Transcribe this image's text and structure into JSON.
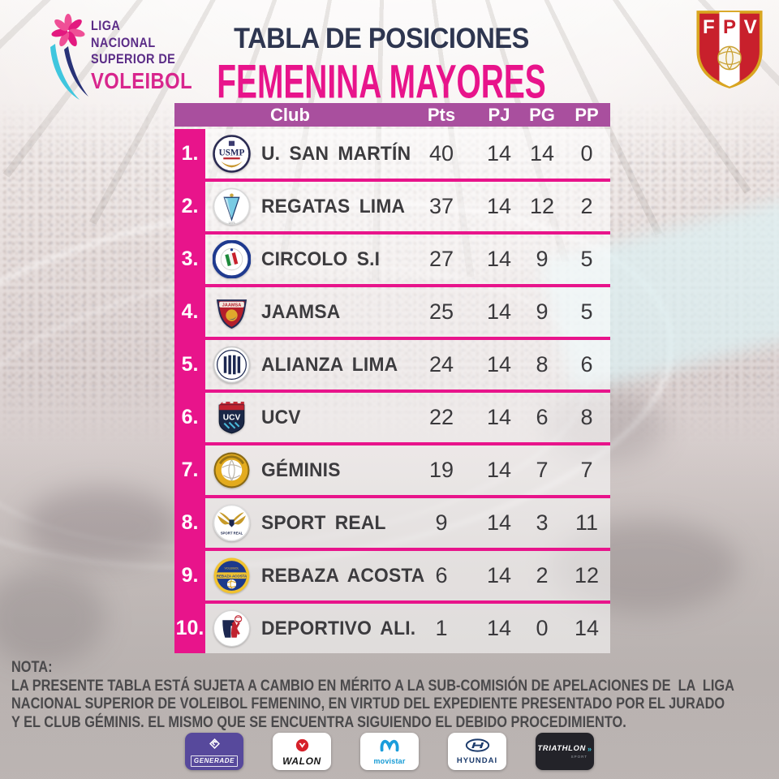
{
  "league_logo": {
    "lines": [
      "LIGA",
      "NACIONAL",
      "SUPERIOR DE",
      "VOLEIBOL"
    ]
  },
  "federation_logo": {
    "letters": [
      "F",
      "P",
      "V"
    ]
  },
  "title": "TABLA DE POSICIONES",
  "subtitle": "FEMENINA MAYORES",
  "table": {
    "columns": [
      "Club",
      "Pts",
      "PJ",
      "PG",
      "PP"
    ],
    "rows": [
      {
        "rank": "1.",
        "club": "U. SAN MARTÍN",
        "pts": "40",
        "pj": "14",
        "pg": "14",
        "pp": "0",
        "logo": "usmp"
      },
      {
        "rank": "2.",
        "club": "REGATAS LIMA",
        "pts": "37",
        "pj": "14",
        "pg": "12",
        "pp": "2",
        "logo": "regatas"
      },
      {
        "rank": "3.",
        "club": "CIRCOLO S.I",
        "pts": "27",
        "pj": "14",
        "pg": "9",
        "pp": "5",
        "logo": "circolo"
      },
      {
        "rank": "4.",
        "club": "JAAMSA",
        "pts": "25",
        "pj": "14",
        "pg": "9",
        "pp": "5",
        "logo": "jaamsa"
      },
      {
        "rank": "5.",
        "club": "ALIANZA LIMA",
        "pts": "24",
        "pj": "14",
        "pg": "8",
        "pp": "6",
        "logo": "alianza"
      },
      {
        "rank": "6.",
        "club": "UCV",
        "pts": "22",
        "pj": "14",
        "pg": "6",
        "pp": "8",
        "logo": "ucv"
      },
      {
        "rank": "7.",
        "club": "GÉMINIS",
        "pts": "19",
        "pj": "14",
        "pg": "7",
        "pp": "7",
        "logo": "geminis"
      },
      {
        "rank": "8.",
        "club": "SPORT REAL",
        "pts": "9",
        "pj": "14",
        "pg": "3",
        "pp": "11",
        "logo": "sportreal"
      },
      {
        "rank": "9.",
        "club": "REBAZA ACOSTA",
        "pts": "6",
        "pj": "14",
        "pg": "2",
        "pp": "12",
        "logo": "rebaza"
      },
      {
        "rank": "10.",
        "club": "DEPORTIVO ALI.",
        "pts": "1",
        "pj": "14",
        "pg": "0",
        "pp": "14",
        "logo": "deportivo"
      }
    ]
  },
  "note": {
    "label": "NOTA:",
    "lines": [
      "LA PRESENTE TABLA ESTÁ SUJETA A CAMBIO EN MÉRITO A LA SUB-COMISIÓN DE APELACIONES DE  LA  LIGA",
      "NACIONAL SUPERIOR DE VOLEIBOL FEMENINO, EN VIRTUD DEL EXPEDIENTE PRESENTADO POR EL JURADO",
      "Y EL CLUB GÉMINIS. EL MISMO QUE SE ENCUENTRA SIGUIENDO EL DEBIDO PROCEDIMIENTO."
    ]
  },
  "sponsors": [
    {
      "id": "generade",
      "label": "GENERADE"
    },
    {
      "id": "walon",
      "label": "WALON"
    },
    {
      "id": "movistar",
      "label": "movistar"
    },
    {
      "id": "hyundai",
      "label": "HYUNDAI"
    },
    {
      "id": "triathlon",
      "label": "TRIATHLON",
      "sub": "SPORT"
    }
  ],
  "chart_data": {
    "type": "table",
    "title": "TABLA DE POSICIONES — FEMENINA MAYORES",
    "columns": [
      "Club",
      "Pts",
      "PJ",
      "PG",
      "PP"
    ],
    "rows": [
      [
        "U. SAN MARTÍN",
        40,
        14,
        14,
        0
      ],
      [
        "REGATAS LIMA",
        37,
        14,
        12,
        2
      ],
      [
        "CIRCOLO S.I",
        27,
        14,
        9,
        5
      ],
      [
        "JAAMSA",
        25,
        14,
        9,
        5
      ],
      [
        "ALIANZA LIMA",
        24,
        14,
        8,
        6
      ],
      [
        "UCV",
        22,
        14,
        6,
        8
      ],
      [
        "GÉMINIS",
        19,
        14,
        7,
        7
      ],
      [
        "SPORT REAL",
        9,
        14,
        3,
        11
      ],
      [
        "REBAZA ACOSTA",
        6,
        14,
        2,
        12
      ],
      [
        "DEPORTIVO ALI.",
        1,
        14,
        0,
        14
      ]
    ]
  },
  "colors": {
    "accent_pink": "#e8148b",
    "header_purple": "#a94f9e",
    "title_navy": "#2e3650",
    "text_dark": "#3c3b3e",
    "note_gray": "#4a494b",
    "league_purple": "#5b2c87",
    "league_pink": "#d8268d"
  }
}
